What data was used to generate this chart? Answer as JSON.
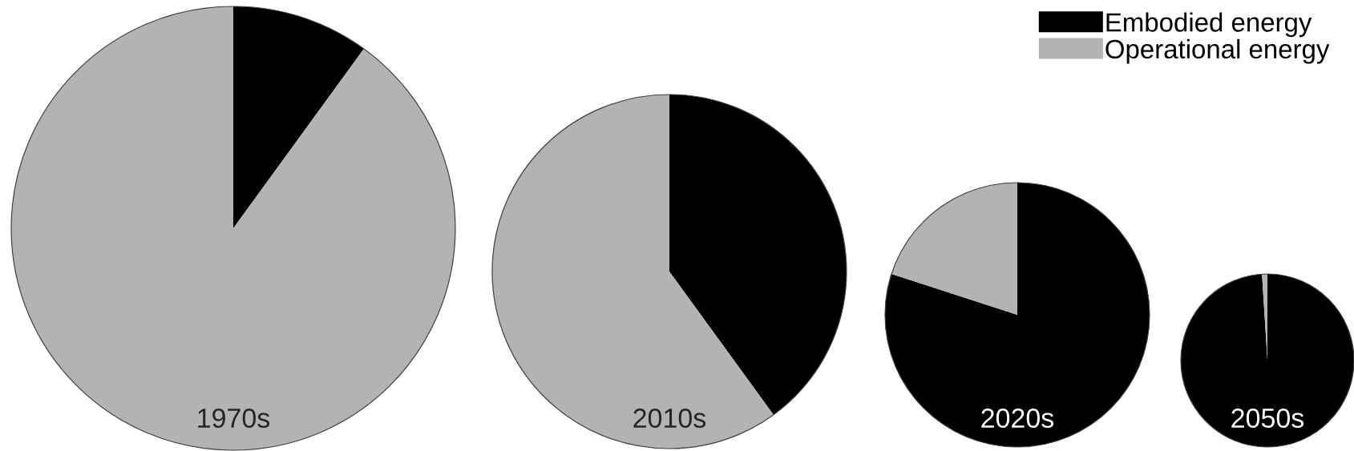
{
  "chart_data": {
    "type": "pie",
    "categories": [
      "Embodied energy",
      "Operational energy"
    ],
    "colors": [
      "#000000",
      "#b3b3b3"
    ],
    "legend": "top right",
    "series": [
      {
        "name": "1970s",
        "values": [
          10,
          90
        ]
      },
      {
        "name": "2010s",
        "values": [
          40,
          60
        ]
      },
      {
        "name": "2020s",
        "values": [
          80,
          20
        ]
      },
      {
        "name": "2050s",
        "values": [
          99,
          1
        ]
      }
    ]
  }
}
